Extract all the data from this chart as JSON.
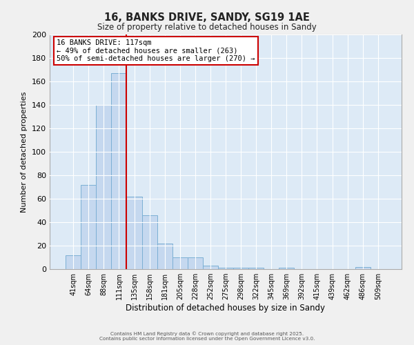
{
  "title": "16, BANKS DRIVE, SANDY, SG19 1AE",
  "subtitle": "Size of property relative to detached houses in Sandy",
  "xlabel": "Distribution of detached houses by size in Sandy",
  "ylabel": "Number of detached properties",
  "bar_labels": [
    "41sqm",
    "64sqm",
    "88sqm",
    "111sqm",
    "135sqm",
    "158sqm",
    "181sqm",
    "205sqm",
    "228sqm",
    "252sqm",
    "275sqm",
    "298sqm",
    "322sqm",
    "345sqm",
    "369sqm",
    "392sqm",
    "415sqm",
    "439sqm",
    "462sqm",
    "486sqm",
    "509sqm"
  ],
  "bar_values": [
    12,
    72,
    140,
    167,
    62,
    46,
    22,
    10,
    10,
    3,
    1,
    1,
    1,
    0,
    1,
    0,
    0,
    0,
    0,
    2,
    0
  ],
  "bar_color": "#c5d8ef",
  "bar_edge_color": "#7bafd4",
  "ylim": [
    0,
    200
  ],
  "yticks": [
    0,
    20,
    40,
    60,
    80,
    100,
    120,
    140,
    160,
    180,
    200
  ],
  "vline_index": 3,
  "vline_color": "#cc0000",
  "annotation_title": "16 BANKS DRIVE: 117sqm",
  "annotation_line1": "← 49% of detached houses are smaller (263)",
  "annotation_line2": "50% of semi-detached houses are larger (270) →",
  "annotation_box_color": "#cc0000",
  "plot_bg_color": "#ddeaf6",
  "fig_bg_color": "#f0f0f0",
  "grid_color": "#ffffff",
  "footer1": "Contains HM Land Registry data © Crown copyright and database right 2025.",
  "footer2": "Contains public sector information licensed under the Open Government Licence v3.0."
}
